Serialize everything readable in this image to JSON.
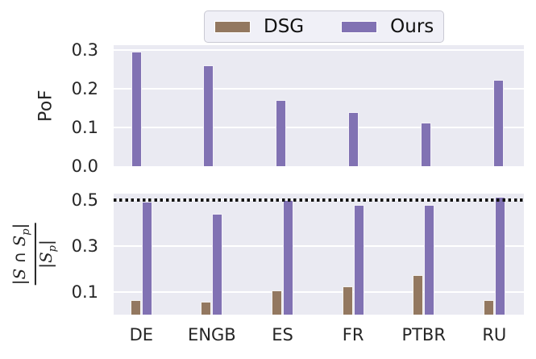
{
  "figure": {
    "background": "#ffffff",
    "text_color": "#262626",
    "plot_background": "#eaeaf2",
    "grid_color": "#ffffff"
  },
  "legend": {
    "items": [
      {
        "label": "DSG",
        "color": "#937860"
      },
      {
        "label": "Ours",
        "color": "#8172b3"
      }
    ]
  },
  "chart_data": [
    {
      "type": "bar",
      "panel": "top",
      "ylabel": "PoF",
      "categories": [
        "DE",
        "ENGB",
        "ES",
        "FR",
        "PTBR",
        "RU"
      ],
      "series": [
        {
          "name": "DSG",
          "color": "#937860",
          "values": [
            0,
            0,
            0,
            0,
            0,
            0
          ]
        },
        {
          "name": "Ours",
          "color": "#8172b3",
          "values": [
            0.295,
            0.26,
            0.17,
            0.14,
            0.113,
            0.223
          ]
        }
      ],
      "ytick_labels": [
        "0.0",
        "0.1",
        "0.2",
        "0.3"
      ],
      "ytick_values": [
        0.0,
        0.1,
        0.2,
        0.3
      ],
      "ylim": [
        0,
        0.3125
      ],
      "grid": true
    },
    {
      "type": "bar",
      "panel": "bottom",
      "ylabel": {
        "numerator": {
          "bar1": "|",
          "s1": "S",
          "op": " ∩ ",
          "s2": "S",
          "sub": "p",
          "bar2": "|"
        },
        "denominator": {
          "bar1": "|",
          "s": "S",
          "sub": "p",
          "bar2": "|"
        }
      },
      "categories": [
        "DE",
        "ENGB",
        "ES",
        "FR",
        "PTBR",
        "RU"
      ],
      "series": [
        {
          "name": "DSG",
          "color": "#937860",
          "values": [
            0.065,
            0.057,
            0.106,
            0.123,
            0.172,
            0.065
          ]
        },
        {
          "name": "Ours",
          "color": "#8172b3",
          "values": [
            0.49,
            0.44,
            0.5,
            0.478,
            0.476,
            0.513
          ]
        }
      ],
      "ytick_labels": [
        "0.1",
        "0.3",
        "0.5"
      ],
      "ytick_values": [
        0.1,
        0.3,
        0.5
      ],
      "ylim": [
        0,
        0.526
      ],
      "grid": true,
      "hline": {
        "value": 0.5,
        "style": "dotted",
        "color": "#111111"
      }
    }
  ],
  "x_axis": {
    "categories": [
      "DE",
      "ENGB",
      "ES",
      "FR",
      "PTBR",
      "RU"
    ]
  }
}
